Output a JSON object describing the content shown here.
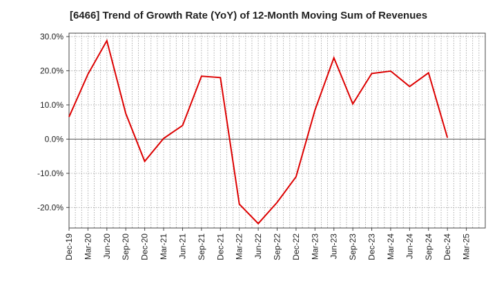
{
  "chart_data": {
    "type": "line",
    "title": "[6466]  Trend of Growth Rate (YoY) of 12-Month Moving Sum of Revenues",
    "xlabel": "",
    "ylabel": "",
    "x_ticks": [
      "Dec-19",
      "Mar-20",
      "Jun-20",
      "Sep-20",
      "Dec-20",
      "Mar-21",
      "Jun-21",
      "Sep-21",
      "Dec-21",
      "Mar-22",
      "Jun-22",
      "Sep-22",
      "Dec-22",
      "Mar-23",
      "Jun-23",
      "Sep-23",
      "Dec-23",
      "Mar-24",
      "Jun-24",
      "Sep-24",
      "Dec-24",
      "Mar-25"
    ],
    "y_ticks": [
      {
        "value": 30,
        "label": "30.0%"
      },
      {
        "value": 20,
        "label": "20.0%"
      },
      {
        "value": 10,
        "label": "10.0%"
      },
      {
        "value": 0,
        "label": "0.0%"
      },
      {
        "value": -10,
        "label": "-10.0%"
      },
      {
        "value": -20,
        "label": "-20.0%"
      }
    ],
    "ylim": [
      -26,
      31
    ],
    "grid": true,
    "color": "#dd0000",
    "series": [
      {
        "values": [
          6.5,
          19.0,
          28.8,
          7.5,
          -6.5,
          0.2,
          4.0,
          18.4,
          18.0,
          -19.0,
          -24.7,
          -18.5,
          -11.0,
          8.5,
          23.8,
          10.3,
          19.2,
          19.9,
          15.4,
          19.4,
          0.4
        ]
      }
    ]
  }
}
